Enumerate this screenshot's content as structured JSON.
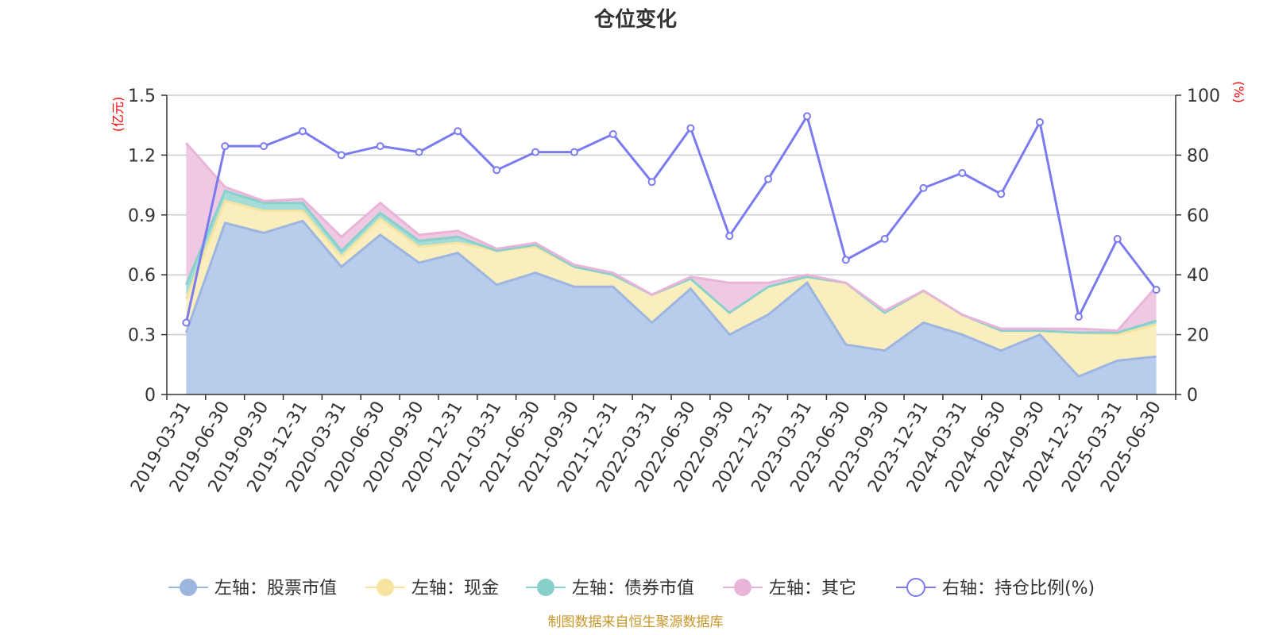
{
  "chart_data": {
    "type": "area",
    "title": "仓位变化",
    "source_note": "制图数据来自恒生聚源数据库",
    "left_axis": {
      "unit": "(亿元)",
      "ticks": [
        "0",
        "0.3",
        "0.6",
        "0.9",
        "1.2",
        "1.5"
      ],
      "ylim": [
        0,
        1.5
      ]
    },
    "right_axis": {
      "unit": "(%)",
      "ticks": [
        "0",
        "20",
        "40",
        "60",
        "80",
        "100"
      ],
      "ylim": [
        0,
        100
      ]
    },
    "grid": true,
    "legend_position": "bottom",
    "categories": [
      "2019-03-31",
      "2019-06-30",
      "2019-09-30",
      "2019-12-31",
      "2020-03-31",
      "2020-06-30",
      "2020-09-30",
      "2020-12-31",
      "2021-03-31",
      "2021-06-30",
      "2021-09-30",
      "2021-12-31",
      "2022-03-31",
      "2022-06-30",
      "2022-09-30",
      "2022-12-31",
      "2023-03-31",
      "2023-06-30",
      "2023-09-30",
      "2023-12-31",
      "2024-03-31",
      "2024-06-30",
      "2024-09-30",
      "2024-12-31",
      "2025-03-31",
      "2025-06-30"
    ],
    "stacked_series": [
      {
        "name": "左轴：股票市值",
        "axis": "left",
        "color": "#9db6e0",
        "fill": "#b8cceb",
        "values": [
          0.31,
          0.86,
          0.81,
          0.87,
          0.64,
          0.8,
          0.66,
          0.71,
          0.55,
          0.61,
          0.54,
          0.54,
          0.36,
          0.53,
          0.3,
          0.4,
          0.56,
          0.25,
          0.22,
          0.36,
          0.3,
          0.22,
          0.3,
          0.09,
          0.17,
          0.19
        ]
      },
      {
        "name": "左轴：现金",
        "axis": "left",
        "color": "#f7e4a0",
        "fill": "#faeebf",
        "values": [
          0.17,
          0.11,
          0.11,
          0.05,
          0.05,
          0.08,
          0.08,
          0.05,
          0.17,
          0.13,
          0.1,
          0.06,
          0.14,
          0.05,
          0.11,
          0.14,
          0.03,
          0.31,
          0.19,
          0.16,
          0.1,
          0.1,
          0.02,
          0.22,
          0.13,
          0.16
        ]
      },
      {
        "name": "左轴：债券市值",
        "axis": "left",
        "color": "#87d0cc",
        "fill": "#a4dcd8",
        "values": [
          0.07,
          0.05,
          0.04,
          0.04,
          0.03,
          0.03,
          0.03,
          0.03,
          0.0,
          0.01,
          0.0,
          0.0,
          0.0,
          0.0,
          0.0,
          0.0,
          0.0,
          0.0,
          0.0,
          0.0,
          0.0,
          0.0,
          0.0,
          0.0,
          0.01,
          0.02
        ]
      },
      {
        "name": "左轴：其它",
        "axis": "left",
        "color": "#e8b4d8",
        "fill": "#efc9e2",
        "values": [
          0.71,
          0.02,
          0.01,
          0.02,
          0.07,
          0.05,
          0.03,
          0.03,
          0.01,
          0.01,
          0.01,
          0.01,
          0.0,
          0.01,
          0.15,
          0.02,
          0.01,
          0.0,
          0.01,
          0.0,
          0.0,
          0.01,
          0.01,
          0.02,
          0.01,
          0.17
        ]
      }
    ],
    "line_series": {
      "name": "右轴：持仓比例(%)",
      "axis": "right",
      "color": "#7b7bef",
      "values": [
        24,
        83,
        83,
        88,
        80,
        83,
        81,
        88,
        75,
        81,
        81,
        87,
        71,
        89,
        53,
        72,
        93,
        45,
        52,
        69,
        74,
        67,
        91,
        26,
        52,
        35
      ]
    }
  }
}
